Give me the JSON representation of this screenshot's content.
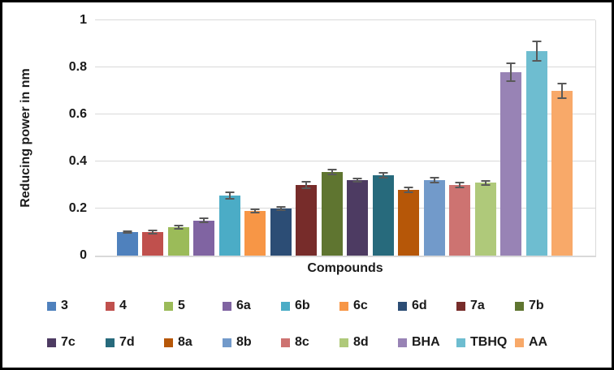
{
  "frame": {
    "background": "#FFFFFF",
    "border_color": "#000000"
  },
  "chart_data": {
    "type": "bar",
    "title": "",
    "xlabel": "Compounds",
    "ylabel": "Reducing power in nm",
    "ylim": [
      0,
      1
    ],
    "yticks": [
      0,
      0.2,
      0.4,
      0.6,
      0.8,
      1
    ],
    "ytick_labels": [
      "0",
      "0.2",
      "0.4",
      "0.6",
      "0.8",
      "1"
    ],
    "grid": "horizontal",
    "gridline_color": "#D9D9D9",
    "error_bar_color": "#595959",
    "legend_position": "bottom",
    "categories": [
      "3",
      "4",
      "5",
      "6a",
      "6b",
      "6c",
      "6d",
      "7a",
      "7b",
      "7c",
      "7d",
      "8a",
      "8b",
      "8c",
      "8d",
      "BHA",
      "TBHQ",
      "AA"
    ],
    "values": [
      0.1,
      0.1,
      0.12,
      0.15,
      0.255,
      0.19,
      0.2,
      0.3,
      0.355,
      0.32,
      0.34,
      0.28,
      0.32,
      0.3,
      0.31,
      0.78,
      0.87,
      0.7
    ],
    "errors": [
      0.008,
      0.01,
      0.01,
      0.013,
      0.016,
      0.01,
      0.012,
      0.016,
      0.014,
      0.01,
      0.014,
      0.013,
      0.013,
      0.013,
      0.012,
      0.042,
      0.045,
      0.035
    ],
    "colors": [
      "#4F81BD",
      "#C0504D",
      "#9BBB59",
      "#8064A2",
      "#4BACC6",
      "#F79646",
      "#2C4D75",
      "#772C2A",
      "#5F7530",
      "#4D3B62",
      "#276A7C",
      "#B65708",
      "#729ACA",
      "#CD7371",
      "#AFC97A",
      "#9883B5",
      "#6EBDD0",
      "#F8A969"
    ],
    "legend_rows": [
      [
        "3",
        "4",
        "5",
        "6a",
        "6b",
        "6c",
        "6d",
        "7a",
        "7b"
      ],
      [
        "7c",
        "7d",
        "8a",
        "8b",
        "8c",
        "8d",
        "BHA",
        "TBHQ",
        "AA"
      ]
    ]
  }
}
